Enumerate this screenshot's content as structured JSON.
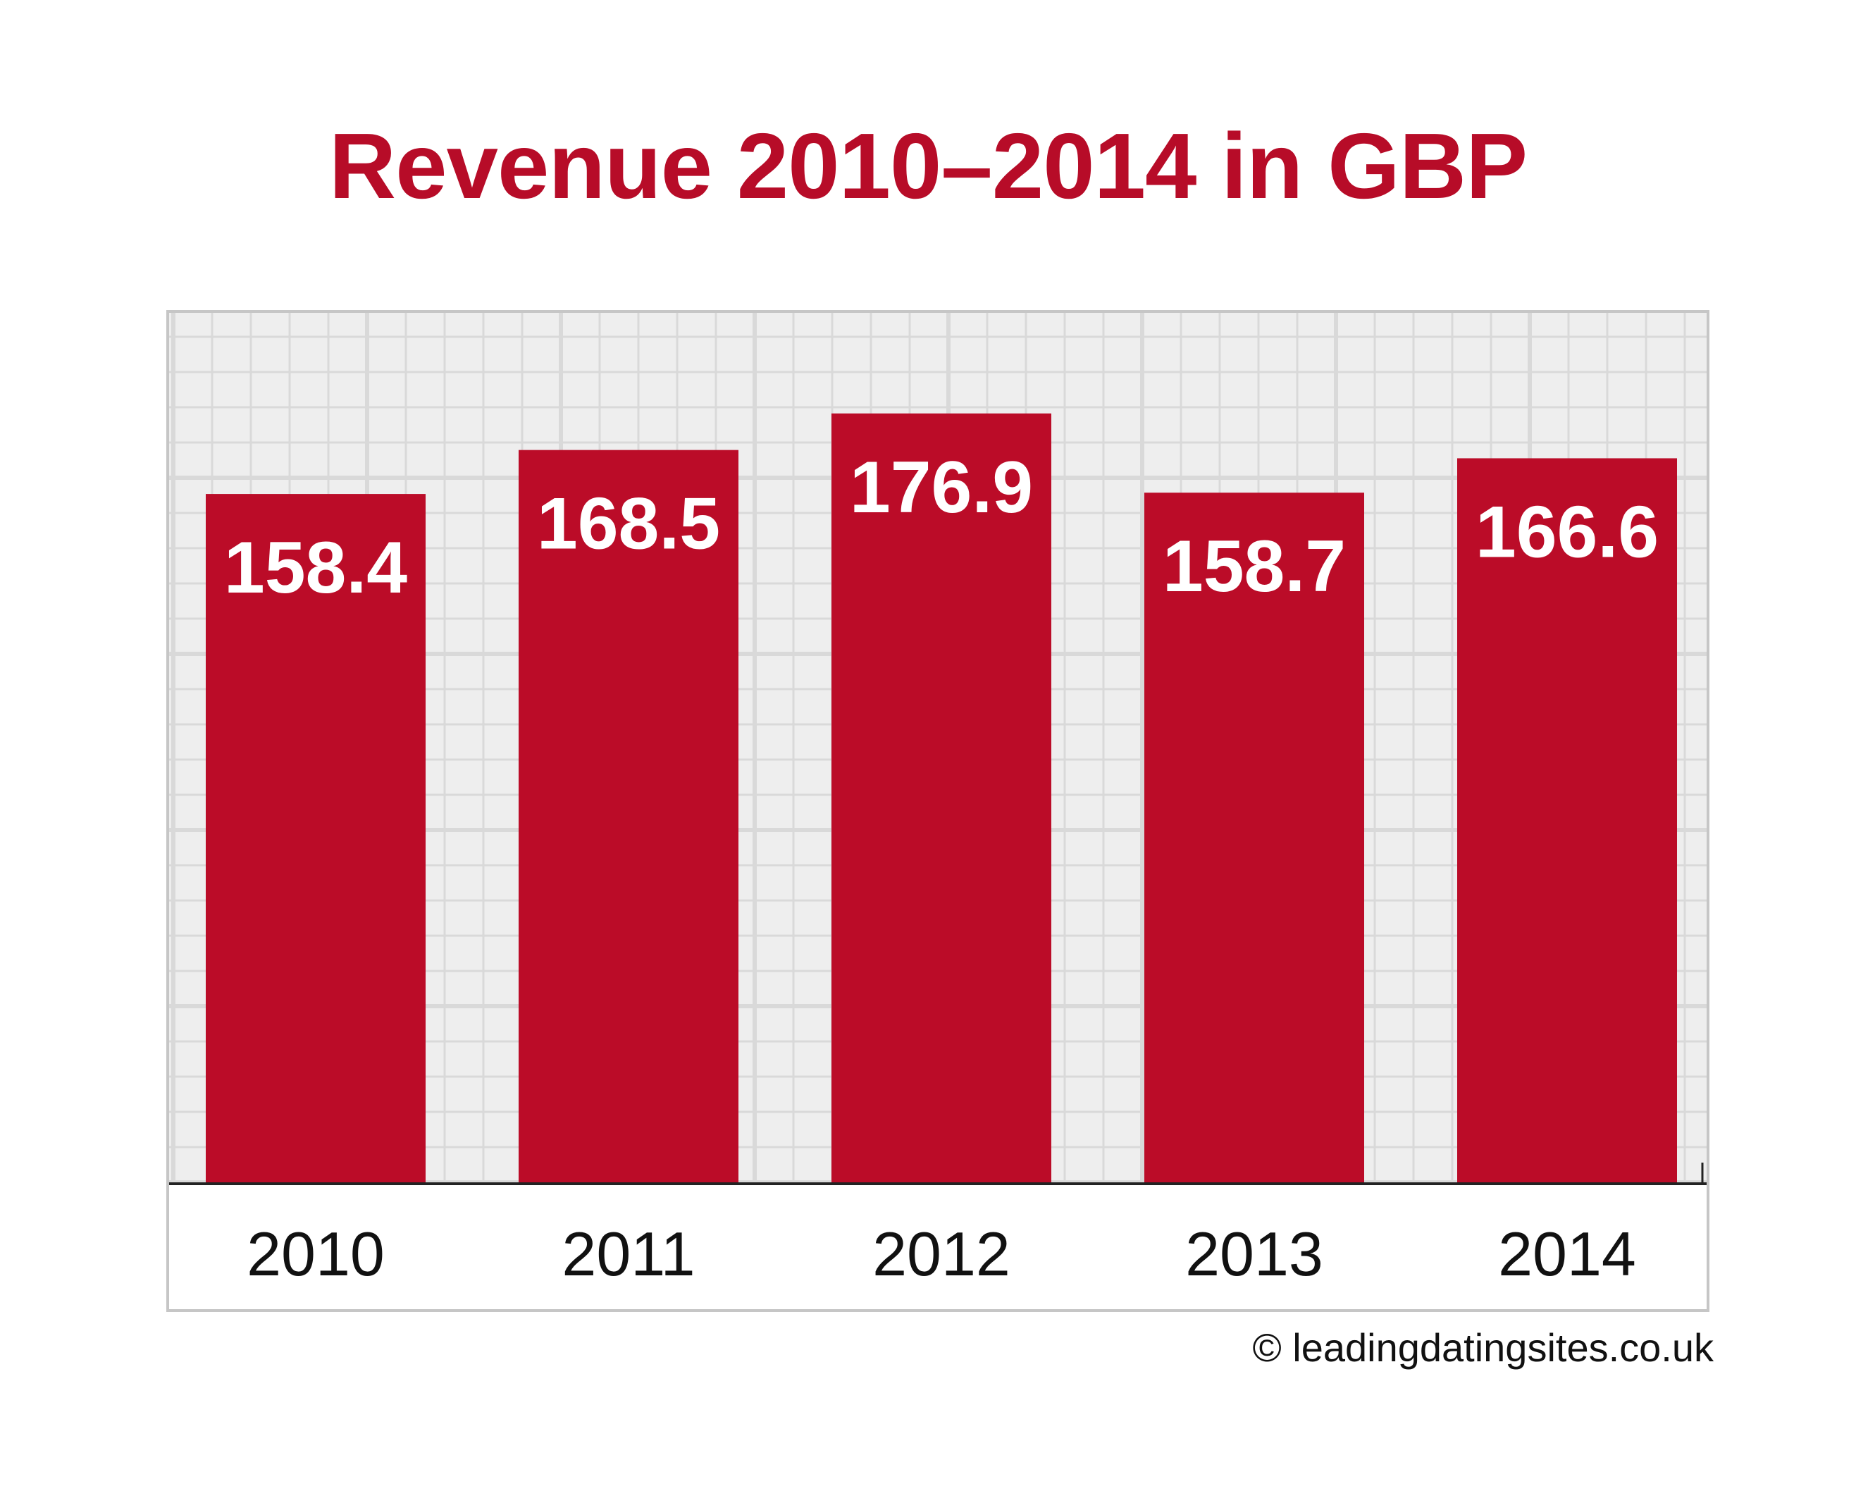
{
  "chart_data": {
    "type": "bar",
    "title": "Revenue 2010–2014 in GBP",
    "categories": [
      "2010",
      "2011",
      "2012",
      "2013",
      "2014"
    ],
    "values": [
      158.4,
      168.5,
      176.9,
      158.7,
      166.6
    ],
    "value_labels": [
      "158.4",
      "168.5",
      "176.9",
      "158.7",
      "166.6"
    ],
    "xlabel": "",
    "ylabel": "",
    "ylim": [
      0,
      200
    ],
    "grid": true,
    "y_axis_visible": false,
    "bar_color": "#bb0c28",
    "grid_background": "#eeeeee",
    "grid_line_color": "#d9d9d9"
  },
  "footer": {
    "copyright": "© leadingdatingsites.co.uk"
  }
}
